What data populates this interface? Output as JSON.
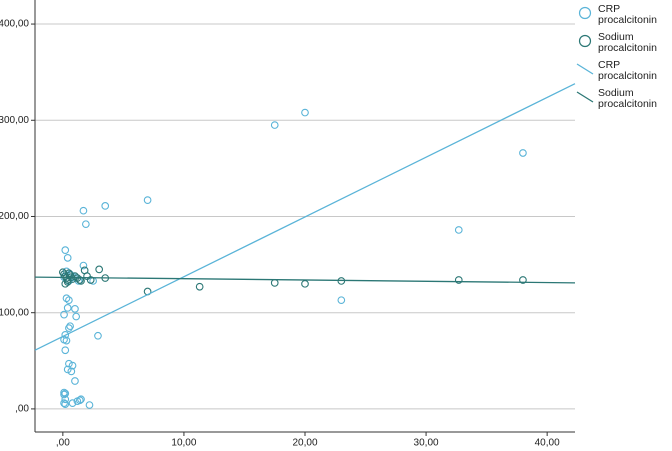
{
  "chart_data": {
    "type": "scatter",
    "xlim": [
      -2.3,
      42.3
    ],
    "ylim": [
      -24,
      425
    ],
    "xticks": [
      {
        "value": 0,
        "label": ",00"
      },
      {
        "value": 10,
        "label": "10,00"
      },
      {
        "value": 20,
        "label": "20,00"
      },
      {
        "value": 30,
        "label": "30,00"
      },
      {
        "value": 40,
        "label": "40,00"
      }
    ],
    "yticks": [
      {
        "value": 0,
        "label": ",00"
      },
      {
        "value": 100,
        "label": "100,00"
      },
      {
        "value": 200,
        "label": "200,00"
      },
      {
        "value": 300,
        "label": "300,00"
      },
      {
        "value": 400,
        "label": "400,00"
      }
    ],
    "grid": true,
    "series": [
      {
        "name": "CRP procalcitonin",
        "color": "#5ab4d8",
        "type": "scatter",
        "x": [
          0.2,
          0.4,
          0.3,
          0.1,
          0.5,
          0.3,
          0.5,
          0.4,
          0.1,
          0.6,
          0.5,
          0.2,
          0.1,
          0.3,
          0.2,
          0.5,
          0.8,
          0.7,
          0.4,
          1.0,
          0.1,
          0.2,
          0.1,
          0.2,
          0.1,
          0.2,
          1.2,
          1.4,
          1.5,
          0.8,
          2.2,
          1.0,
          1.1,
          2.9,
          1.7,
          1.9,
          3.5,
          7.0,
          1.7,
          17.5,
          20.0,
          23.0,
          32.7,
          38.0,
          0.6,
          0.9,
          1.3,
          2.5
        ],
        "values": [
          165,
          157,
          143,
          137,
          133,
          115,
          113,
          105,
          98,
          86,
          84,
          77,
          72,
          71,
          61,
          47,
          45,
          39,
          41,
          29,
          17,
          16,
          15,
          10,
          6,
          5,
          8,
          9,
          10,
          6,
          4,
          104,
          96,
          76,
          206,
          192,
          211,
          217,
          149,
          295,
          308,
          113,
          186,
          266,
          140,
          137,
          133,
          133
        ]
      },
      {
        "name": "Sodium procalcitonin",
        "color": "#2b7775",
        "type": "scatter",
        "x": [
          0.0,
          0.1,
          0.2,
          0.3,
          0.4,
          0.5,
          0.6,
          0.7,
          0.8,
          1.0,
          1.2,
          1.5,
          1.8,
          2.0,
          2.3,
          3.0,
          3.5,
          7.0,
          11.3,
          17.5,
          20.0,
          23.0,
          32.7,
          38.0,
          0.2,
          0.4,
          1.4
        ],
        "values": [
          142,
          140,
          138,
          136,
          134,
          141,
          139,
          137,
          135,
          138,
          136,
          133,
          144,
          138,
          134,
          145,
          136,
          122,
          127,
          131,
          130,
          133,
          134,
          134,
          130,
          132,
          134
        ]
      },
      {
        "name": "CRP procalcitonin",
        "color": "#5ab4d8",
        "type": "line",
        "x": [
          -2.3,
          42.3
        ],
        "values": [
          61,
          338
        ]
      },
      {
        "name": "Sodium procalcitonin",
        "color": "#2b7775",
        "type": "line",
        "x": [
          -2.3,
          42.3
        ],
        "values": [
          137,
          131
        ]
      }
    ]
  }
}
